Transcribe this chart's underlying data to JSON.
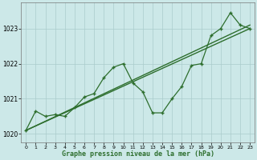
{
  "xlabel": "Graphe pression niveau de la mer (hPa)",
  "background_color": "#cce8e8",
  "grid_color": "#aacccc",
  "line_color": "#2d6e2d",
  "xlim": [
    -0.5,
    23.5
  ],
  "ylim": [
    1019.75,
    1023.75
  ],
  "yticks": [
    1020,
    1021,
    1022,
    1023
  ],
  "xticks": [
    0,
    1,
    2,
    3,
    4,
    5,
    6,
    7,
    8,
    9,
    10,
    11,
    12,
    13,
    14,
    15,
    16,
    17,
    18,
    19,
    20,
    21,
    22,
    23
  ],
  "series1_x": [
    0,
    1,
    2,
    3,
    4,
    5,
    6,
    7,
    8,
    9,
    10,
    11,
    12,
    13,
    14,
    15,
    16,
    17,
    18,
    19,
    20,
    21,
    22,
    23
  ],
  "series1_y": [
    1020.1,
    1020.65,
    1020.5,
    1020.55,
    1020.5,
    1020.75,
    1021.05,
    1021.15,
    1021.6,
    1021.9,
    1022.0,
    1021.45,
    1021.2,
    1020.6,
    1020.6,
    1021.0,
    1021.35,
    1021.95,
    1022.0,
    1022.8,
    1023.0,
    1023.45,
    1023.1,
    1023.0
  ],
  "series2_x": [
    0,
    23
  ],
  "series2_y": [
    1020.1,
    1023.1
  ],
  "series3_x": [
    0,
    23
  ],
  "series3_y": [
    1020.1,
    1023.0
  ]
}
